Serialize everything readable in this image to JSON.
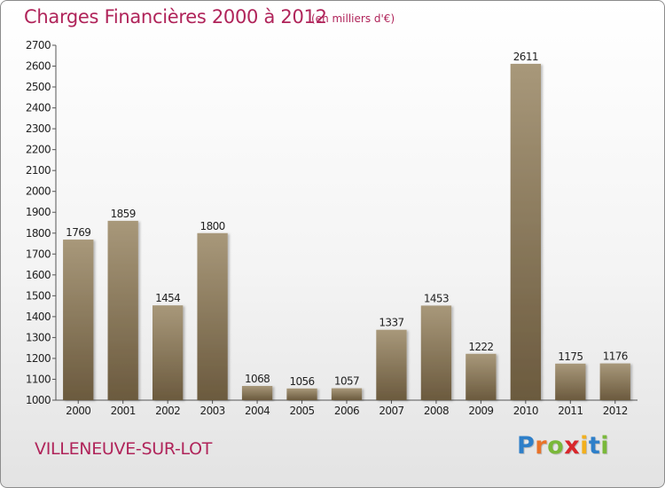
{
  "header": {
    "title": "Charges Financières 2000 à 2012",
    "unit_note": "(en milliers d'€)"
  },
  "footer": {
    "location": "VILLENEUVE-SUR-LOT",
    "logo_letters": [
      "P",
      "r",
      "o",
      "x",
      "i",
      "t",
      "i"
    ]
  },
  "colors": {
    "title": "#b0245a",
    "bar_top": "#a8987a",
    "bar_bottom": "#6b5a3e",
    "logo_letters": [
      "#2e7fc9",
      "#e8732a",
      "#7ab83a",
      "#d8262b",
      "#f2b01e",
      "#2e7fc9",
      "#7ab83a"
    ]
  },
  "chart_data": {
    "type": "bar",
    "title": "Charges Financières 2000 à 2012",
    "subtitle": "(en milliers d'€)",
    "xlabel": "",
    "ylabel": "",
    "categories": [
      "2000",
      "2001",
      "2002",
      "2003",
      "2004",
      "2005",
      "2006",
      "2007",
      "2008",
      "2009",
      "2010",
      "2011",
      "2012"
    ],
    "values": [
      1769,
      1859,
      1454,
      1800,
      1068,
      1056,
      1057,
      1337,
      1453,
      1222,
      2611,
      1175,
      1176
    ],
    "ylim": [
      1000,
      2700
    ],
    "yticks": [
      1000,
      1100,
      1200,
      1300,
      1400,
      1500,
      1600,
      1700,
      1800,
      1900,
      2000,
      2100,
      2200,
      2300,
      2400,
      2500,
      2600,
      2700
    ],
    "grid": false,
    "data_labels": true
  }
}
